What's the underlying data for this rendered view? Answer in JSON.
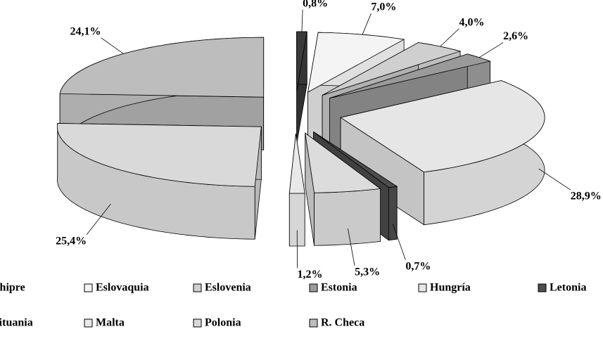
{
  "chart_data": {
    "type": "pie",
    "categories": [
      "Chipre",
      "Eslovaquia",
      "Eslovenia",
      "Estonia",
      "Hungría",
      "Letonia",
      "Lituania",
      "Malta",
      "Polonia",
      "R. Checa"
    ],
    "values": [
      0.8,
      7.0,
      4.0,
      2.6,
      28.9,
      0.7,
      5.3,
      1.2,
      25.4,
      24.1
    ],
    "value_labels": [
      "0,8%",
      "7,0%",
      "4,0%",
      "2,6%",
      "28,9%",
      "0,7%",
      "5,3%",
      "1,2%",
      "25,4%",
      "24,1%"
    ],
    "colors": [
      "#3a3a3a",
      "#f4f4f4",
      "#cfcfcf",
      "#9a9a9a",
      "#e6e6e6",
      "#4d4d4d",
      "#dcdcdc",
      "#e9e9e9",
      "#d9d9d9",
      "#bdbdbd"
    ],
    "legend": "bottom"
  }
}
